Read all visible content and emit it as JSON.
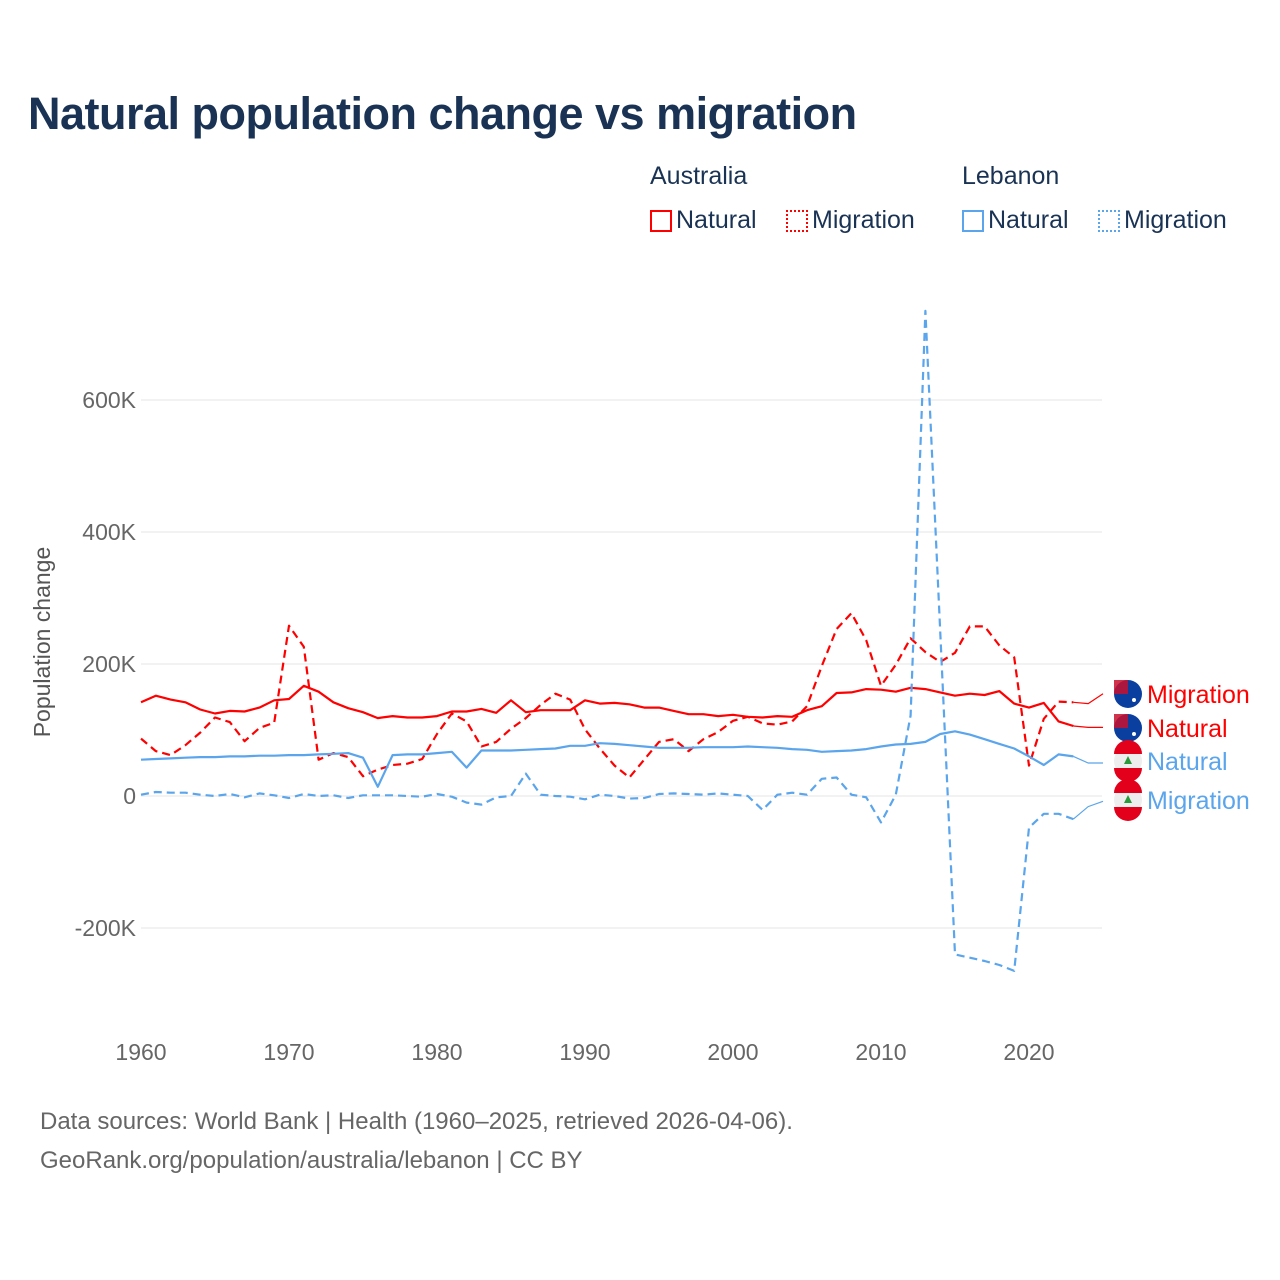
{
  "title": "Natural population change vs migration",
  "legend": {
    "groups": [
      {
        "name": "Australia",
        "items": [
          "Natural",
          "Migration"
        ]
      },
      {
        "name": "Lebanon",
        "items": [
          "Natural",
          "Migration"
        ]
      }
    ]
  },
  "footer": {
    "line1": "Data sources: World Bank | Health (1960–2025, retrieved 2026-04-06).",
    "line2": "GeoRank.org/population/australia/lebanon | CC BY"
  },
  "chart_data": {
    "type": "line",
    "title": "Natural population change vs migration",
    "xlabel": "",
    "ylabel": "Population change",
    "xlim": [
      1960,
      2025
    ],
    "ylim": [
      -260000,
      740000
    ],
    "xticks": [
      1960,
      1970,
      1980,
      1990,
      2000,
      2010,
      2020
    ],
    "yticks": [
      {
        "v": -200000,
        "l": "-200K"
      },
      {
        "v": 0,
        "l": "0"
      },
      {
        "v": 200000,
        "l": "200K"
      },
      {
        "v": 400000,
        "l": "400K"
      },
      {
        "v": 600000,
        "l": "600K"
      }
    ],
    "x_start": 1960,
    "series": [
      {
        "name": "Australia Natural",
        "label": "Natural",
        "color": "#ff0000",
        "dash": false,
        "country": "au",
        "values": [
          142,
          152,
          146,
          142,
          131,
          125,
          129,
          128,
          134,
          145,
          147,
          167,
          158,
          142,
          133,
          127,
          118,
          121,
          119,
          119,
          121,
          128,
          128,
          132,
          126,
          145,
          127,
          130,
          130,
          130,
          145,
          140,
          141,
          139,
          134,
          134,
          129,
          124,
          124,
          121,
          123,
          120,
          119,
          121,
          120,
          130,
          136,
          156,
          157,
          162,
          161,
          158,
          164,
          162,
          157,
          152,
          155,
          153,
          159,
          140,
          134,
          141,
          113,
          106,
          104,
          104
        ]
      },
      {
        "name": "Australia Migration",
        "label": "Migration",
        "color": "#ff0000",
        "dash": true,
        "country": "au",
        "values": [
          87,
          68,
          62,
          77,
          96,
          119,
          112,
          83,
          103,
          111,
          258,
          226,
          55,
          65,
          59,
          30,
          40,
          47,
          49,
          56,
          94,
          125,
          113,
          75,
          82,
          102,
          118,
          138,
          155,
          146,
          101,
          72,
          46,
          28,
          55,
          82,
          86,
          68,
          86,
          97,
          114,
          120,
          110,
          108,
          113,
          136,
          197,
          253,
          277,
          236,
          167,
          199,
          239,
          218,
          203,
          217,
          257,
          257,
          228,
          210,
          46,
          117,
          143,
          142,
          140,
          155
        ]
      },
      {
        "name": "Lebanon Natural",
        "label": "Natural",
        "color": "#5aa5ec",
        "dash": false,
        "country": "lb",
        "values": [
          55,
          56,
          57,
          58,
          59,
          59,
          60,
          60,
          61,
          61,
          62,
          62,
          63,
          64,
          65,
          58,
          14,
          62,
          63,
          63,
          65,
          67,
          43,
          69,
          69,
          69,
          70,
          71,
          72,
          76,
          76,
          80,
          79,
          77,
          75,
          73,
          73,
          73,
          74,
          74,
          74,
          75,
          74,
          73,
          71,
          70,
          67,
          68,
          69,
          71,
          75,
          78,
          79,
          82,
          94,
          98,
          93,
          86,
          79,
          72,
          60,
          47,
          63,
          60,
          50,
          50
        ]
      },
      {
        "name": "Lebanon Migration",
        "label": "Migration",
        "color": "#5aa5ec",
        "dash": true,
        "country": "lb",
        "values": [
          2,
          6,
          5,
          5,
          2,
          0,
          3,
          -2,
          4,
          1,
          -3,
          3,
          0,
          1,
          -3,
          1,
          1,
          1,
          0,
          -1,
          3,
          -1,
          -10,
          -13,
          -2,
          0,
          34,
          2,
          0,
          -1,
          -5,
          2,
          0,
          -4,
          -3,
          3,
          4,
          3,
          2,
          4,
          2,
          0,
          -21,
          2,
          5,
          2,
          26,
          28,
          2,
          -2,
          -40,
          2,
          122,
          735,
          250,
          -240,
          -245,
          -250,
          -256,
          -265,
          -48,
          -27,
          -27,
          -35,
          -16,
          -8
        ]
      }
    ]
  }
}
